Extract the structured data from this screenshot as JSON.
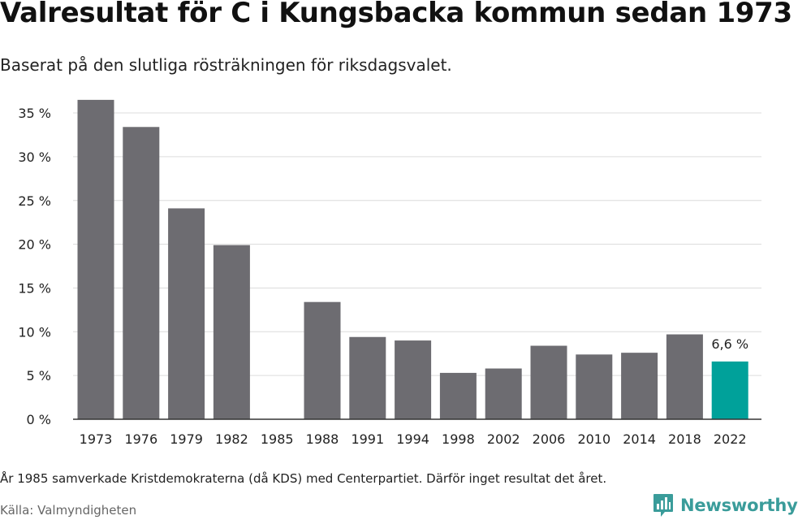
{
  "title": "Valresultat för C i Kungsbacka kommun sedan 1973",
  "subtitle": "Baserat på den slutliga rösträkningen för riksdagsvalet.",
  "note": "År 1985 samverkade Kristdemokraterna (då KDS) med Centerpartiet. Därför inget resultat det året.",
  "source": "Källa: Valmyndigheten",
  "logo": {
    "text": "Newsworthy",
    "icon": "newsworthy-logo-icon",
    "color": "#3a9c9a"
  },
  "chart_data": {
    "type": "bar",
    "categories": [
      "1973",
      "1976",
      "1979",
      "1982",
      "1985",
      "1988",
      "1991",
      "1994",
      "1998",
      "2002",
      "2006",
      "2010",
      "2014",
      "2018",
      "2022"
    ],
    "values": [
      36.5,
      33.4,
      24.1,
      19.9,
      null,
      13.4,
      9.4,
      9.0,
      5.3,
      5.8,
      8.4,
      7.4,
      7.6,
      9.7,
      6.6
    ],
    "ylim": [
      0,
      35
    ],
    "yticks": [
      0,
      5,
      10,
      15,
      20,
      25,
      30,
      35
    ],
    "ytick_labels": [
      "0 %",
      "5 %",
      "10 %",
      "15 %",
      "20 %",
      "25 %",
      "30 %",
      "35 %"
    ],
    "annotations": [
      {
        "category": "2022",
        "label": "6,6 %"
      }
    ],
    "colors": {
      "bar": "#6d6c71",
      "highlight": "#00a19a",
      "grid": "#dcdcdc",
      "axis": "#333333"
    },
    "highlight_category": "2022",
    "grid": true
  }
}
